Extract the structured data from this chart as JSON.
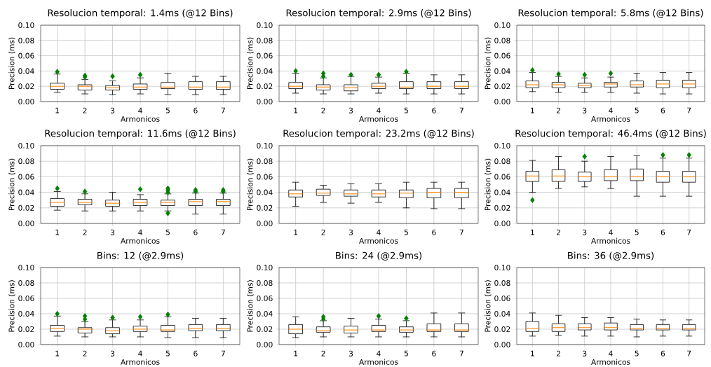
{
  "chart_data": [
    {
      "type": "box",
      "title": "Resolucion temporal: 1.4ms (@12 Bins)",
      "xlabel": "Armonicos",
      "ylabel": "Precision (ms)",
      "categories": [
        "1",
        "2",
        "3",
        "4",
        "5",
        "6",
        "7"
      ],
      "ylim": [
        0,
        0.1
      ],
      "yticks": [
        {
          "value": 0,
          "label": "0.00"
        },
        {
          "value": 0.02,
          "label": "0.02"
        },
        {
          "value": 0.04,
          "label": "0.04"
        },
        {
          "value": 0.06,
          "label": "0.06"
        },
        {
          "value": 0.08,
          "label": "0.08"
        },
        {
          "value": 0.1,
          "label": "0.10"
        }
      ],
      "grid": true,
      "marker": "diamond",
      "boxes": [
        {
          "low": 0.012,
          "q1": 0.016,
          "median": 0.02,
          "q3": 0.024,
          "high": 0.036,
          "outliers": [
            0.039
          ]
        },
        {
          "low": 0.01,
          "q1": 0.015,
          "median": 0.02,
          "q3": 0.022,
          "high": 0.029,
          "outliers": [
            0.032,
            0.034
          ]
        },
        {
          "low": 0.009,
          "q1": 0.015,
          "median": 0.018,
          "q3": 0.021,
          "high": 0.027,
          "outliers": [
            0.033
          ]
        },
        {
          "low": 0.01,
          "q1": 0.016,
          "median": 0.019,
          "q3": 0.023,
          "high": 0.031,
          "outliers": [
            0.035
          ]
        },
        {
          "low": 0.009,
          "q1": 0.017,
          "median": 0.019,
          "q3": 0.025,
          "high": 0.037
        },
        {
          "low": 0.009,
          "q1": 0.016,
          "median": 0.019,
          "q3": 0.026,
          "high": 0.033
        },
        {
          "low": 0.009,
          "q1": 0.016,
          "median": 0.019,
          "q3": 0.026,
          "high": 0.033
        }
      ]
    },
    {
      "type": "box",
      "title": "Resolucion temporal: 2.9ms (@12 Bins)",
      "xlabel": "Armonicos",
      "ylabel": "Precision (ms)",
      "categories": [
        "1",
        "2",
        "3",
        "4",
        "5",
        "6",
        "7"
      ],
      "ylim": [
        0,
        0.1
      ],
      "yticks": [
        {
          "value": 0,
          "label": "0.00"
        },
        {
          "value": 0.02,
          "label": "0.02"
        },
        {
          "value": 0.04,
          "label": "0.04"
        },
        {
          "value": 0.06,
          "label": "0.06"
        },
        {
          "value": 0.08,
          "label": "0.08"
        },
        {
          "value": 0.1,
          "label": "0.10"
        }
      ],
      "grid": true,
      "marker": "diamond",
      "boxes": [
        {
          "low": 0.011,
          "q1": 0.017,
          "median": 0.02,
          "q3": 0.025,
          "high": 0.037,
          "outliers": [
            0.04
          ]
        },
        {
          "low": 0.01,
          "q1": 0.015,
          "median": 0.019,
          "q3": 0.022,
          "high": 0.031,
          "outliers": [
            0.033,
            0.037
          ]
        },
        {
          "low": 0.01,
          "q1": 0.014,
          "median": 0.018,
          "q3": 0.022,
          "high": 0.033,
          "outliers": [
            0.035
          ]
        },
        {
          "low": 0.011,
          "q1": 0.017,
          "median": 0.02,
          "q3": 0.024,
          "high": 0.032,
          "outliers": [
            0.035
          ]
        },
        {
          "low": 0.01,
          "q1": 0.017,
          "median": 0.019,
          "q3": 0.026,
          "high": 0.037,
          "outliers": [
            0.039
          ]
        },
        {
          "low": 0.01,
          "q1": 0.017,
          "median": 0.02,
          "q3": 0.026,
          "high": 0.035
        },
        {
          "low": 0.01,
          "q1": 0.017,
          "median": 0.02,
          "q3": 0.026,
          "high": 0.035
        }
      ]
    },
    {
      "type": "box",
      "title": "Resolucion temporal: 5.8ms (@12 Bins)",
      "xlabel": "Armonicos",
      "ylabel": "Precision (ms)",
      "categories": [
        "1",
        "2",
        "3",
        "4",
        "5",
        "6",
        "7"
      ],
      "ylim": [
        0,
        0.1
      ],
      "yticks": [
        {
          "value": 0,
          "label": "0.00"
        },
        {
          "value": 0.02,
          "label": "0.02"
        },
        {
          "value": 0.04,
          "label": "0.04"
        },
        {
          "value": 0.06,
          "label": "0.06"
        },
        {
          "value": 0.08,
          "label": "0.08"
        },
        {
          "value": 0.1,
          "label": "0.10"
        }
      ],
      "grid": true,
      "marker": "diamond",
      "boxes": [
        {
          "low": 0.013,
          "q1": 0.018,
          "median": 0.022,
          "q3": 0.027,
          "high": 0.038,
          "outliers": [
            0.041
          ]
        },
        {
          "low": 0.012,
          "q1": 0.018,
          "median": 0.022,
          "q3": 0.025,
          "high": 0.033,
          "outliers": [
            0.036
          ]
        },
        {
          "low": 0.012,
          "q1": 0.018,
          "median": 0.021,
          "q3": 0.024,
          "high": 0.031,
          "outliers": [
            0.035
          ]
        },
        {
          "low": 0.012,
          "q1": 0.019,
          "median": 0.023,
          "q3": 0.025,
          "high": 0.032,
          "outliers": [
            0.037
          ]
        },
        {
          "low": 0.011,
          "q1": 0.019,
          "median": 0.022,
          "q3": 0.027,
          "high": 0.037
        },
        {
          "low": 0.01,
          "q1": 0.018,
          "median": 0.023,
          "q3": 0.028,
          "high": 0.038
        },
        {
          "low": 0.01,
          "q1": 0.018,
          "median": 0.023,
          "q3": 0.028,
          "high": 0.038
        }
      ]
    },
    {
      "type": "box",
      "title": "Resolucion temporal: 11.6ms (@12 Bins)",
      "xlabel": "Armonicos",
      "ylabel": "Precision (ms)",
      "categories": [
        "1",
        "2",
        "3",
        "4",
        "5",
        "6",
        "7"
      ],
      "ylim": [
        0,
        0.1
      ],
      "yticks": [
        {
          "value": 0,
          "label": "0.00"
        },
        {
          "value": 0.02,
          "label": "0.02"
        },
        {
          "value": 0.04,
          "label": "0.04"
        },
        {
          "value": 0.06,
          "label": "0.06"
        },
        {
          "value": 0.08,
          "label": "0.08"
        },
        {
          "value": 0.1,
          "label": "0.10"
        }
      ],
      "grid": true,
      "marker": "diamond",
      "boxes": [
        {
          "low": 0.017,
          "q1": 0.022,
          "median": 0.027,
          "q3": 0.032,
          "high": 0.041,
          "outliers": [
            0.045
          ]
        },
        {
          "low": 0.016,
          "q1": 0.024,
          "median": 0.027,
          "q3": 0.031,
          "high": 0.038,
          "outliers": [
            0.041
          ]
        },
        {
          "low": 0.016,
          "q1": 0.022,
          "median": 0.026,
          "q3": 0.03,
          "high": 0.04
        },
        {
          "low": 0.016,
          "q1": 0.023,
          "median": 0.027,
          "q3": 0.031,
          "high": 0.037,
          "outliers": [
            0.044
          ]
        },
        {
          "low": 0.016,
          "q1": 0.023,
          "median": 0.027,
          "q3": 0.03,
          "high": 0.038,
          "outliers": [
            0.013,
            0.04,
            0.043,
            0.045
          ]
        },
        {
          "low": 0.012,
          "q1": 0.023,
          "median": 0.028,
          "q3": 0.031,
          "high": 0.039,
          "outliers": [
            0.041,
            0.043
          ]
        },
        {
          "low": 0.012,
          "q1": 0.023,
          "median": 0.028,
          "q3": 0.031,
          "high": 0.039,
          "outliers": [
            0.041,
            0.043
          ]
        }
      ]
    },
    {
      "type": "box",
      "title": "Resolucion temporal: 23.2ms (@12 Bins)",
      "xlabel": "Armonicos",
      "ylabel": "Precision (ms)",
      "categories": [
        "1",
        "2",
        "3",
        "4",
        "5",
        "6",
        "7"
      ],
      "ylim": [
        0,
        0.1
      ],
      "yticks": [
        {
          "value": 0,
          "label": "0.00"
        },
        {
          "value": 0.02,
          "label": "0.02"
        },
        {
          "value": 0.04,
          "label": "0.04"
        },
        {
          "value": 0.06,
          "label": "0.06"
        },
        {
          "value": 0.08,
          "label": "0.08"
        },
        {
          "value": 0.1,
          "label": "0.10"
        }
      ],
      "grid": true,
      "marker": "diamond",
      "boxes": [
        {
          "low": 0.022,
          "q1": 0.034,
          "median": 0.038,
          "q3": 0.043,
          "high": 0.053
        },
        {
          "low": 0.027,
          "q1": 0.036,
          "median": 0.039,
          "q3": 0.044,
          "high": 0.049
        },
        {
          "low": 0.026,
          "q1": 0.035,
          "median": 0.038,
          "q3": 0.043,
          "high": 0.051
        },
        {
          "low": 0.027,
          "q1": 0.034,
          "median": 0.038,
          "q3": 0.043,
          "high": 0.051
        },
        {
          "low": 0.02,
          "q1": 0.033,
          "median": 0.039,
          "q3": 0.043,
          "high": 0.053
        },
        {
          "low": 0.019,
          "q1": 0.033,
          "median": 0.04,
          "q3": 0.045,
          "high": 0.053
        },
        {
          "low": 0.019,
          "q1": 0.033,
          "median": 0.04,
          "q3": 0.045,
          "high": 0.053
        }
      ]
    },
    {
      "type": "box",
      "title": "Resolucion temporal: 46.4ms (@12 Bins)",
      "xlabel": "Armonicos",
      "ylabel": "Precision (ms)",
      "categories": [
        "1",
        "2",
        "3",
        "4",
        "5",
        "6",
        "7"
      ],
      "ylim": [
        0,
        0.1
      ],
      "yticks": [
        {
          "value": 0,
          "label": "0.00"
        },
        {
          "value": 0.02,
          "label": "0.02"
        },
        {
          "value": 0.04,
          "label": "0.04"
        },
        {
          "value": 0.06,
          "label": "0.06"
        },
        {
          "value": 0.08,
          "label": "0.08"
        },
        {
          "value": 0.1,
          "label": "0.10"
        }
      ],
      "grid": true,
      "marker": "diamond",
      "boxes": [
        {
          "low": 0.04,
          "q1": 0.054,
          "median": 0.061,
          "q3": 0.067,
          "high": 0.081,
          "outliers": [
            0.03
          ]
        },
        {
          "low": 0.045,
          "q1": 0.054,
          "median": 0.061,
          "q3": 0.069,
          "high": 0.086
        },
        {
          "low": 0.047,
          "q1": 0.054,
          "median": 0.06,
          "q3": 0.066,
          "high": 0.08,
          "outliers": [
            0.086
          ]
        },
        {
          "low": 0.045,
          "q1": 0.055,
          "median": 0.06,
          "q3": 0.069,
          "high": 0.086
        },
        {
          "low": 0.035,
          "q1": 0.055,
          "median": 0.06,
          "q3": 0.07,
          "high": 0.087
        },
        {
          "low": 0.035,
          "q1": 0.053,
          "median": 0.06,
          "q3": 0.067,
          "high": 0.084,
          "outliers": [
            0.088
          ]
        },
        {
          "low": 0.035,
          "q1": 0.053,
          "median": 0.06,
          "q3": 0.067,
          "high": 0.084,
          "outliers": [
            0.088
          ]
        }
      ]
    },
    {
      "type": "box",
      "title": "Bins: 12 (@2.9ms)",
      "xlabel": "Armonicos",
      "ylabel": "Precision (ms)",
      "categories": [
        "1",
        "2",
        "3",
        "4",
        "5",
        "6",
        "7"
      ],
      "ylim": [
        0,
        0.1
      ],
      "yticks": [
        {
          "value": 0,
          "label": "0.00"
        },
        {
          "value": 0.02,
          "label": "0.02"
        },
        {
          "value": 0.04,
          "label": "0.04"
        },
        {
          "value": 0.06,
          "label": "0.06"
        },
        {
          "value": 0.08,
          "label": "0.08"
        },
        {
          "value": 0.1,
          "label": "0.10"
        }
      ],
      "grid": true,
      "marker": "diamond",
      "boxes": [
        {
          "low": 0.011,
          "q1": 0.017,
          "median": 0.021,
          "q3": 0.025,
          "high": 0.037,
          "outliers": [
            0.04
          ]
        },
        {
          "low": 0.01,
          "q1": 0.015,
          "median": 0.02,
          "q3": 0.022,
          "high": 0.03,
          "outliers": [
            0.033,
            0.037
          ]
        },
        {
          "low": 0.01,
          "q1": 0.014,
          "median": 0.018,
          "q3": 0.022,
          "high": 0.032,
          "outliers": [
            0.035
          ]
        },
        {
          "low": 0.01,
          "q1": 0.017,
          "median": 0.02,
          "q3": 0.024,
          "high": 0.032,
          "outliers": [
            0.036
          ]
        },
        {
          "low": 0.009,
          "q1": 0.017,
          "median": 0.019,
          "q3": 0.025,
          "high": 0.036,
          "outliers": [
            0.039
          ]
        },
        {
          "low": 0.009,
          "q1": 0.018,
          "median": 0.021,
          "q3": 0.026,
          "high": 0.034
        },
        {
          "low": 0.009,
          "q1": 0.018,
          "median": 0.021,
          "q3": 0.026,
          "high": 0.034
        }
      ]
    },
    {
      "type": "box",
      "title": "Bins: 24 (@2.9ms)",
      "xlabel": "Armonicos",
      "ylabel": "Precision (ms)",
      "categories": [
        "1",
        "2",
        "3",
        "4",
        "5",
        "6",
        "7"
      ],
      "ylim": [
        0,
        0.1
      ],
      "yticks": [
        {
          "value": 0,
          "label": "0.00"
        },
        {
          "value": 0.02,
          "label": "0.02"
        },
        {
          "value": 0.04,
          "label": "0.04"
        },
        {
          "value": 0.06,
          "label": "0.06"
        },
        {
          "value": 0.08,
          "label": "0.08"
        },
        {
          "value": 0.1,
          "label": "0.10"
        }
      ],
      "grid": true,
      "marker": "diamond",
      "boxes": [
        {
          "low": 0.009,
          "q1": 0.014,
          "median": 0.02,
          "q3": 0.026,
          "high": 0.036
        },
        {
          "low": 0.01,
          "q1": 0.016,
          "median": 0.018,
          "q3": 0.023,
          "high": 0.031,
          "outliers": [
            0.033,
            0.036
          ]
        },
        {
          "low": 0.01,
          "q1": 0.015,
          "median": 0.019,
          "q3": 0.024,
          "high": 0.034
        },
        {
          "low": 0.01,
          "q1": 0.017,
          "median": 0.019,
          "q3": 0.025,
          "high": 0.033,
          "outliers": [
            0.037
          ]
        },
        {
          "low": 0.01,
          "q1": 0.016,
          "median": 0.019,
          "q3": 0.023,
          "high": 0.031,
          "outliers": [
            0.034
          ]
        },
        {
          "low": 0.01,
          "q1": 0.017,
          "median": 0.019,
          "q3": 0.027,
          "high": 0.041
        },
        {
          "low": 0.01,
          "q1": 0.017,
          "median": 0.019,
          "q3": 0.027,
          "high": 0.041
        }
      ]
    },
    {
      "type": "box",
      "title": "Bins: 36 (@2.9ms)",
      "xlabel": "Armonicos",
      "ylabel": "Precision (ms)",
      "categories": [
        "1",
        "2",
        "3",
        "4",
        "5",
        "6",
        "7"
      ],
      "ylim": [
        0,
        0.1
      ],
      "yticks": [
        {
          "value": 0,
          "label": "0.00"
        },
        {
          "value": 0.02,
          "label": "0.02"
        },
        {
          "value": 0.04,
          "label": "0.04"
        },
        {
          "value": 0.06,
          "label": "0.06"
        },
        {
          "value": 0.08,
          "label": "0.08"
        },
        {
          "value": 0.1,
          "label": "0.10"
        }
      ],
      "grid": true,
      "marker": "diamond",
      "boxes": [
        {
          "low": 0.011,
          "q1": 0.017,
          "median": 0.021,
          "q3": 0.03,
          "high": 0.041
        },
        {
          "low": 0.012,
          "q1": 0.017,
          "median": 0.022,
          "q3": 0.027,
          "high": 0.038
        },
        {
          "low": 0.011,
          "q1": 0.019,
          "median": 0.022,
          "q3": 0.027,
          "high": 0.035
        },
        {
          "low": 0.011,
          "q1": 0.019,
          "median": 0.022,
          "q3": 0.028,
          "high": 0.035
        },
        {
          "low": 0.01,
          "q1": 0.019,
          "median": 0.021,
          "q3": 0.026,
          "high": 0.033
        },
        {
          "low": 0.011,
          "q1": 0.019,
          "median": 0.021,
          "q3": 0.026,
          "high": 0.032
        },
        {
          "low": 0.011,
          "q1": 0.019,
          "median": 0.021,
          "q3": 0.026,
          "high": 0.032
        }
      ]
    }
  ]
}
